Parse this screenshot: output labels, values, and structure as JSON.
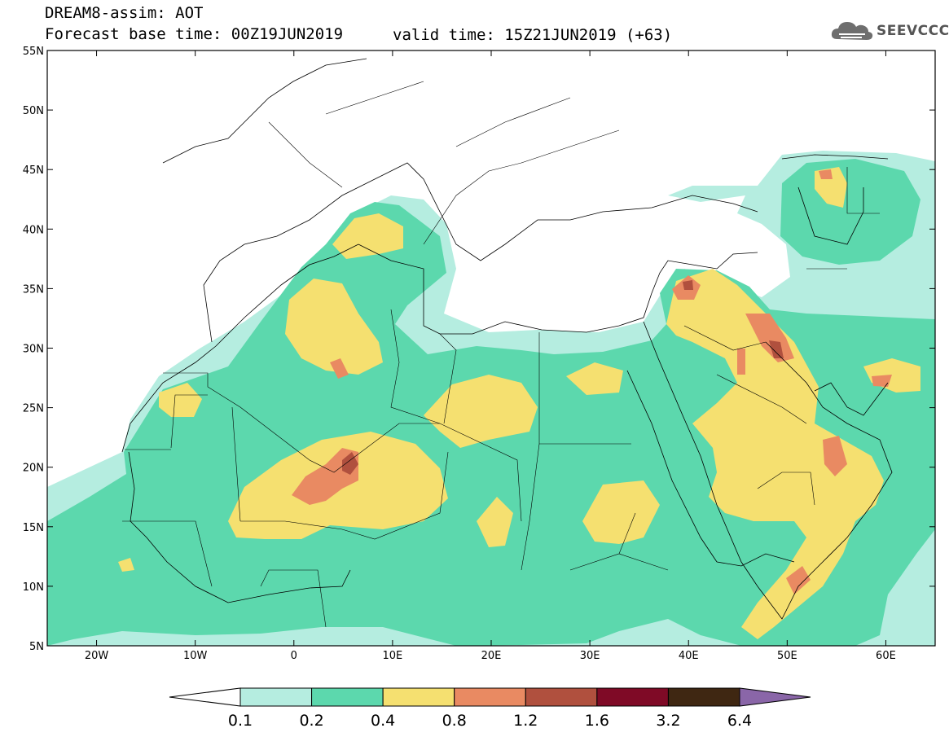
{
  "header": {
    "title": "DREAM8-assim: AOT",
    "base_time": "Forecast base time: 00Z19JUN2019",
    "valid_time": "valid time: 15Z21JUN2019 (+63)"
  },
  "logo": {
    "text": "SEEVCCC",
    "icon": "cloud-icon"
  },
  "map": {
    "lon_range": [
      -25,
      65
    ],
    "lat_range": [
      5,
      55
    ],
    "lon_ticks": [
      {
        "v": -20,
        "label": "20W"
      },
      {
        "v": -10,
        "label": "10W"
      },
      {
        "v": 0,
        "label": "0"
      },
      {
        "v": 10,
        "label": "10E"
      },
      {
        "v": 20,
        "label": "20E"
      },
      {
        "v": 30,
        "label": "30E"
      },
      {
        "v": 40,
        "label": "40E"
      },
      {
        "v": 50,
        "label": "50E"
      },
      {
        "v": 60,
        "label": "60E"
      }
    ],
    "lat_ticks": [
      {
        "v": 5,
        "label": "5N"
      },
      {
        "v": 10,
        "label": "10N"
      },
      {
        "v": 15,
        "label": "15N"
      },
      {
        "v": 20,
        "label": "20N"
      },
      {
        "v": 25,
        "label": "25N"
      },
      {
        "v": 30,
        "label": "30N"
      },
      {
        "v": 35,
        "label": "35N"
      },
      {
        "v": 40,
        "label": "40N"
      },
      {
        "v": 45,
        "label": "45N"
      },
      {
        "v": 50,
        "label": "50N"
      },
      {
        "v": 55,
        "label": "55N"
      }
    ]
  },
  "colorbar": {
    "labels": [
      "0.1",
      "0.2",
      "0.4",
      "0.8",
      "1.2",
      "1.6",
      "3.2",
      "6.4"
    ],
    "colors": [
      "#ffffff",
      "#b5ede0",
      "#5cd8ad",
      "#f5e070",
      "#e98a62",
      "#b0503e",
      "#7f0a26",
      "#3f2712",
      "#8a66a8"
    ]
  }
}
